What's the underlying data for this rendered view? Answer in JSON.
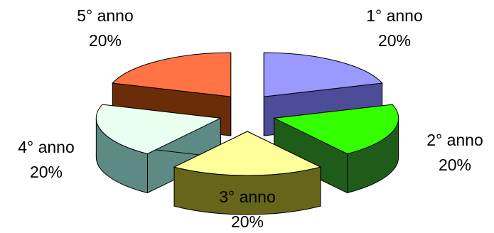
{
  "chart_data": {
    "type": "pie",
    "style": "3d-exploded",
    "categories": [
      "1° anno",
      "2° anno",
      "3° anno",
      "4° anno",
      "5° anno"
    ],
    "values": [
      20,
      20,
      20,
      20,
      20
    ],
    "percent_labels": [
      "20%",
      "20%",
      "20%",
      "20%",
      "20%"
    ],
    "colors": {
      "top": [
        "#9999ff",
        "#33ff00",
        "#ffff99",
        "#ebfff0",
        "#ff7344"
      ],
      "side": [
        "#4c4c99",
        "#1f5c1a",
        "#66661a",
        "#5e8a85",
        "#6b2d08"
      ]
    },
    "title": "",
    "legend": "none"
  }
}
